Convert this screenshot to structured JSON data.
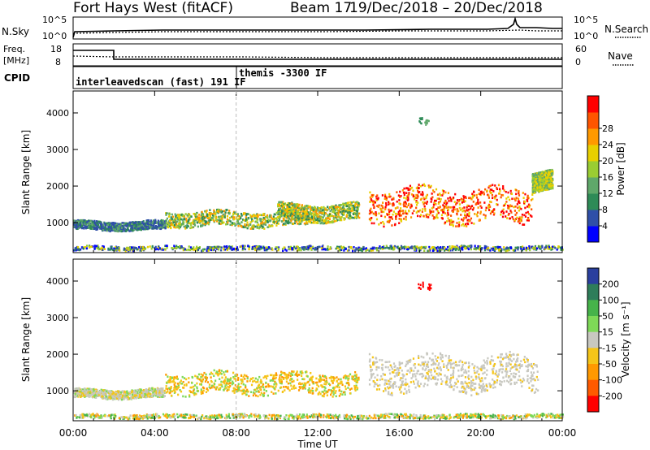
{
  "header": {
    "station": "Fort Hays West (fitACF)",
    "beam": "Beam 17",
    "dates": "19/Dec/2018 – 20/Dec/2018"
  },
  "panels": {
    "noise": {
      "left_label": "N.Sky",
      "right_label": "N.Search",
      "left_ticks": [
        "10^5",
        "10^0"
      ],
      "right_ticks": [
        "10^5",
        "10^0"
      ]
    },
    "freq": {
      "left_label_top": "Freq.",
      "left_label_bottom": "[MHz]",
      "right_label": "Nave",
      "left_ticks": [
        "18",
        "8"
      ],
      "right_ticks": [
        "60",
        "0"
      ]
    },
    "cpid": {
      "label": "CPID",
      "segments": [
        {
          "name": "interleavedscan (fast) 191 IF",
          "start_hour": 0
        },
        {
          "name": "themis -3300 IF",
          "start_hour": 8
        }
      ]
    }
  },
  "chart_data": [
    {
      "type": "heatmap",
      "title": "",
      "xlabel": "Time UT",
      "ylabel": "Slant Range [km]",
      "x_ticks": [
        "00:00",
        "04:00",
        "08:00",
        "12:00",
        "16:00",
        "20:00",
        "00:00"
      ],
      "x_range_hours": [
        0,
        24
      ],
      "y_ticks": [
        1000,
        2000,
        3000,
        4000
      ],
      "ylim": [
        180,
        4600
      ],
      "colorbar": {
        "label": "Power [dB]",
        "ticks": [
          4,
          8,
          12,
          16,
          20,
          24,
          28
        ],
        "range": [
          0,
          32
        ],
        "colors": [
          "#0000ff",
          "#2f4fa8",
          "#2e8b57",
          "#5fa86a",
          "#9acd32",
          "#e8d000",
          "#ff9900",
          "#ff5500",
          "#ff0000"
        ]
      },
      "approx_echo_regions_km_vs_hour": [
        {
          "t": [
            0,
            24
          ],
          "range_km": [
            250,
            400
          ],
          "note": "near-range ground clutter"
        },
        {
          "t": [
            0,
            4.5
          ],
          "range_km": [
            780,
            1100
          ],
          "power_db": [
            4,
            12
          ]
        },
        {
          "t": [
            4.5,
            11.5
          ],
          "range_km": [
            850,
            1400
          ],
          "power_db": [
            8,
            20
          ]
        },
        {
          "t": [
            10,
            14
          ],
          "range_km": [
            1000,
            1600
          ],
          "power_db": [
            8,
            20
          ]
        },
        {
          "t": [
            14.5,
            22.5
          ],
          "range_km": [
            900,
            2100
          ],
          "power_db": [
            20,
            32
          ]
        },
        {
          "t": [
            22.5,
            23.5
          ],
          "range_km": [
            1800,
            2500
          ],
          "power_db": [
            12,
            24
          ]
        }
      ]
    },
    {
      "type": "heatmap",
      "title": "",
      "xlabel": "Time UT",
      "ylabel": "Slant Range [km]",
      "x_ticks": [
        "00:00",
        "04:00",
        "08:00",
        "12:00",
        "16:00",
        "20:00",
        "00:00"
      ],
      "x_range_hours": [
        0,
        24
      ],
      "y_ticks": [
        1000,
        2000,
        3000,
        4000
      ],
      "ylim": [
        180,
        4600
      ],
      "colorbar": {
        "label": "Velocity [m s⁻¹]",
        "ticks": [
          200,
          100,
          50,
          15,
          -15,
          -50,
          -100,
          -200
        ],
        "colors": [
          "#2a3f9e",
          "#2e7d5a",
          "#46b34a",
          "#7ed957",
          "#c8c8c0",
          "#f5c518",
          "#ff9900",
          "#ff5a00",
          "#ff0000"
        ]
      },
      "approx_echo_regions_km_vs_hour": [
        {
          "t": [
            0,
            24
          ],
          "range_km": [
            250,
            400
          ],
          "velocity": "mixed"
        },
        {
          "t": [
            0,
            4.5
          ],
          "range_km": [
            780,
            1100
          ],
          "velocity": [
            -50,
            15
          ]
        },
        {
          "t": [
            4.5,
            14
          ],
          "range_km": [
            850,
            1600
          ],
          "velocity": [
            -100,
            -15
          ]
        },
        {
          "t": [
            14.5,
            22.8
          ],
          "range_km": [
            900,
            2100
          ],
          "velocity": [
            -15,
            15
          ]
        }
      ]
    }
  ]
}
